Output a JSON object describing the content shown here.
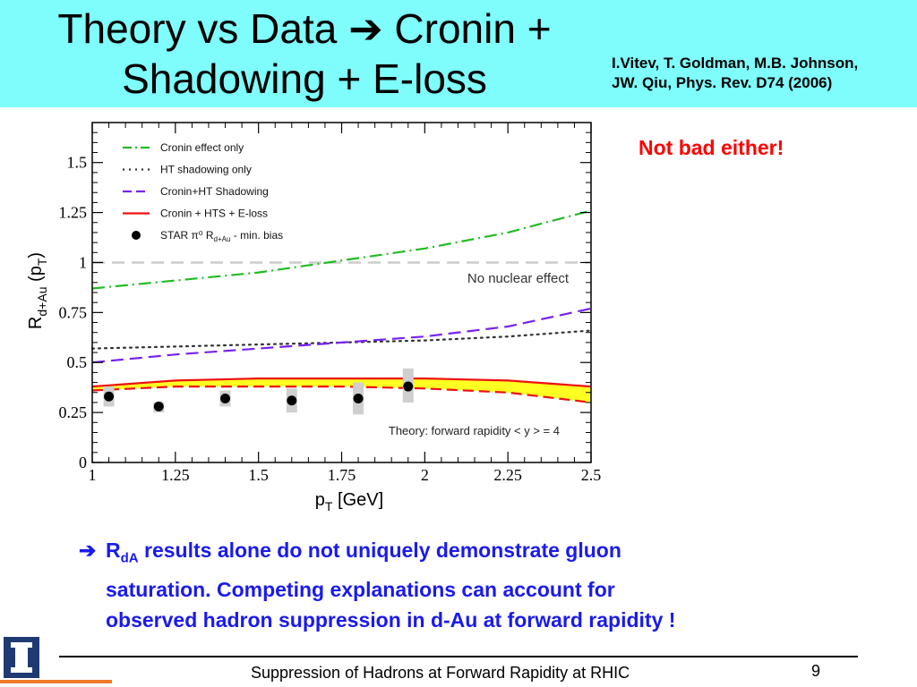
{
  "slide": {
    "title_line1": "Theory vs Data ➔ Cronin +",
    "title_line2": "Shadowing + E-loss",
    "reference_line1": "I.Vitev, T. Goldman, M.B. Johnson,",
    "reference_line2": "JW. Qiu, Phys. Rev. D74 (2006)",
    "note": "Not bad either!",
    "bullet_arrow": "➔",
    "bullet_r": "R",
    "bullet_sub": "dA",
    "bullet_line1_rest": " results alone do not uniquely demonstrate gluon",
    "bullet_line2": "saturation. Competing explanations can account for",
    "bullet_line3": "observed hadron suppression in d-Au at forward rapidity !",
    "footer": "Suppression of Hadrons at Forward Rapidity at RHIC",
    "page_number": "9"
  },
  "chart_data": {
    "type": "line",
    "xlabel_main": "p",
    "xlabel_sub": "T",
    "xlabel_unit": " [GeV]",
    "ylabel_main": "R",
    "ylabel_sub": "d+Au",
    "ylabel_paren_main": "(p",
    "ylabel_paren_sub": "T",
    "ylabel_close": ")",
    "xlim": [
      1,
      2.5
    ],
    "ylim": [
      0,
      1.7
    ],
    "x_ticks": [
      1,
      1.25,
      1.5,
      1.75,
      2,
      2.25,
      2.5
    ],
    "x_tick_labels": [
      "1",
      "1.25",
      "1.5",
      "1.75",
      "2",
      "2.25",
      "2.5"
    ],
    "y_ticks": [
      0,
      0.25,
      0.5,
      0.75,
      1,
      1.25,
      1.5
    ],
    "y_tick_labels": [
      "0",
      "0.25",
      "0.5",
      "0.75",
      "1",
      "1.25",
      "1.5"
    ],
    "reference_line": {
      "y": 1.0,
      "label": "No nuclear effect"
    },
    "annotation": "Theory: forward rapidity < y > = 4",
    "legend_position": "top-left",
    "series": [
      {
        "name": "Cronin effect only",
        "style": "dashdot",
        "color": "#22bb22",
        "x": [
          1,
          1.25,
          1.5,
          1.75,
          2,
          2.25,
          2.5
        ],
        "y": [
          0.87,
          0.91,
          0.95,
          1.01,
          1.07,
          1.15,
          1.26
        ]
      },
      {
        "name": "HT shadowing only",
        "style": "dotted",
        "color": "#333333",
        "x": [
          1,
          1.25,
          1.5,
          1.75,
          2,
          2.25,
          2.5
        ],
        "y": [
          0.57,
          0.58,
          0.59,
          0.6,
          0.61,
          0.63,
          0.66
        ]
      },
      {
        "name": "Cronin+HT Shadowing",
        "style": "dashed",
        "color": "#7722ee",
        "x": [
          1,
          1.25,
          1.5,
          1.75,
          2,
          2.25,
          2.5
        ],
        "y": [
          0.5,
          0.54,
          0.57,
          0.6,
          0.63,
          0.68,
          0.77
        ]
      },
      {
        "name": "Cronin + HTS + E-loss",
        "style": "band",
        "color": "#ee1111",
        "fill": "#ffff22",
        "x": [
          1,
          1.25,
          1.5,
          1.75,
          2,
          2.25,
          2.5
        ],
        "y_upper": [
          0.38,
          0.41,
          0.42,
          0.42,
          0.42,
          0.41,
          0.38
        ],
        "y_lower": [
          0.36,
          0.38,
          0.38,
          0.38,
          0.37,
          0.35,
          0.3
        ]
      },
      {
        "name": "STAR π⁰ R",
        "name_sub": "d+Au",
        "name_suffix": " - min. bias",
        "style": "points",
        "color": "#000000",
        "x": [
          1.05,
          1.2,
          1.4,
          1.6,
          1.8,
          1.95
        ],
        "y": [
          0.33,
          0.28,
          0.32,
          0.31,
          0.32,
          0.38
        ],
        "sys_low": [
          0.28,
          0.25,
          0.28,
          0.25,
          0.24,
          0.3
        ],
        "sys_high": [
          0.38,
          0.3,
          0.36,
          0.37,
          0.4,
          0.47
        ]
      }
    ]
  }
}
